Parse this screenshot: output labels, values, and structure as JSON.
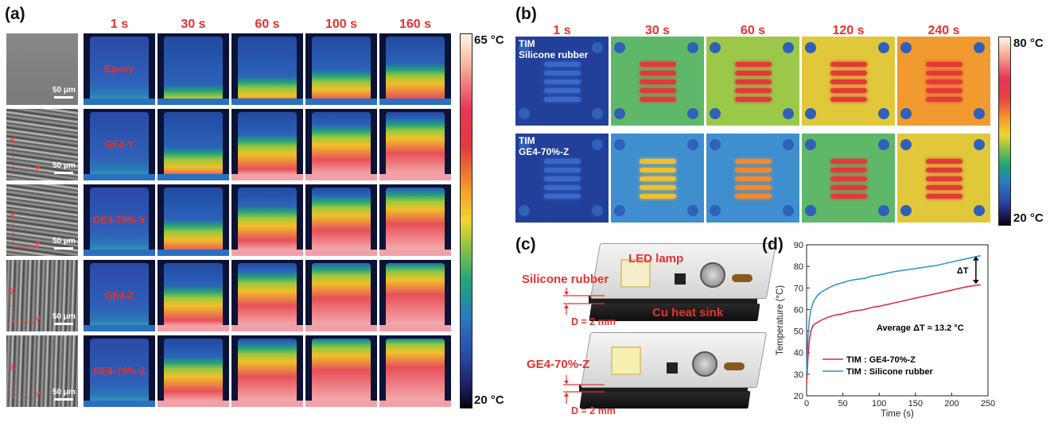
{
  "panel_a": {
    "label": "(a)",
    "times": [
      "1 s",
      "30 s",
      "60 s",
      "100 s",
      "160 s"
    ],
    "rows": [
      {
        "sample": "Epoxy",
        "scale": "50 μm",
        "axis1": "",
        "axis2": "",
        "fill": [
          0.05,
          0.15,
          0.28,
          0.38,
          0.48
        ]
      },
      {
        "sample": "GE4-Y",
        "scale": "50 μm",
        "axis1": "Y",
        "axis2": "Z",
        "fill": [
          0.05,
          0.35,
          0.55,
          0.7,
          0.8
        ]
      },
      {
        "sample": "GE4-70%-Y",
        "scale": "50 μm",
        "axis1": "Y",
        "axis2": "Z",
        "fill": [
          0.05,
          0.4,
          0.62,
          0.78,
          0.88
        ]
      },
      {
        "sample": "GE4-Z",
        "scale": "50 μm",
        "axis1": "Z",
        "axis2": "Y",
        "fill": [
          0.05,
          0.55,
          0.78,
          0.9,
          0.95
        ]
      },
      {
        "sample": "GE4-70%-Z",
        "scale": "50 μm",
        "axis1": "Z",
        "axis2": "Y",
        "fill": [
          0.05,
          0.62,
          0.85,
          0.95,
          1.0
        ]
      }
    ],
    "colorbar_max": "65 °C",
    "colorbar_min": "20 °C"
  },
  "panel_b": {
    "label": "(b)",
    "times": [
      "1 s",
      "30 s",
      "60 s",
      "120 s",
      "240 s"
    ],
    "rows": [
      {
        "tim": "TIM",
        "material": "Silicone rubber",
        "heat": [
          0.05,
          0.55,
          0.7,
          0.8,
          0.95
        ]
      },
      {
        "tim": "TIM",
        "material": "GE4-70%-Z",
        "heat": [
          0.05,
          0.35,
          0.45,
          0.55,
          0.75
        ]
      }
    ],
    "colorbar_max": "80 °C",
    "colorbar_min": "20 °C"
  },
  "panel_c": {
    "label": "(c)",
    "led_lamp": "LED lamp",
    "silicone_rubber": "Silicone rubber",
    "cu_heat_sink": "Cu heat sink",
    "ge4": "GE4-70%-Z",
    "d1": "D = 2 mm",
    "d2": "D = 2 mm"
  },
  "panel_d": {
    "label": "(d)",
    "chart_data": {
      "type": "line",
      "xlabel": "Time (s)",
      "ylabel": "Temperature (°C)",
      "xlim": [
        0,
        250
      ],
      "ylim": [
        20,
        90
      ],
      "xticks": [
        0,
        50,
        100,
        150,
        200,
        250
      ],
      "yticks": [
        20,
        30,
        40,
        50,
        60,
        70,
        80,
        90
      ],
      "annotation": "Average ΔT ≈ 13.2 °C",
      "delta_label": "ΔT",
      "series": [
        {
          "name": "TIM : GE4-70%-Z",
          "color": "#d9263a",
          "x": [
            0,
            2,
            4,
            6,
            8,
            10,
            15,
            20,
            30,
            40,
            50,
            60,
            70,
            80,
            90,
            100,
            120,
            140,
            160,
            180,
            200,
            220,
            240
          ],
          "y": [
            25,
            38,
            46,
            50,
            52,
            53,
            54,
            55,
            56.5,
            57.5,
            58,
            59,
            59.5,
            60,
            61,
            61.5,
            63,
            64.5,
            66,
            67.5,
            69,
            70.5,
            71.5
          ]
        },
        {
          "name": "TIM : Silicone rubber",
          "color": "#2a8fd0",
          "x": [
            0,
            2,
            4,
            6,
            8,
            10,
            15,
            20,
            30,
            40,
            50,
            60,
            70,
            80,
            90,
            100,
            120,
            140,
            160,
            180,
            200,
            220,
            240
          ],
          "y": [
            30,
            48,
            56,
            60,
            62,
            64,
            66.5,
            68,
            70,
            71.5,
            72.5,
            73.5,
            74,
            74.5,
            75.5,
            76,
            77.5,
            78.5,
            79.5,
            80.5,
            82,
            83.5,
            85
          ]
        }
      ]
    }
  }
}
